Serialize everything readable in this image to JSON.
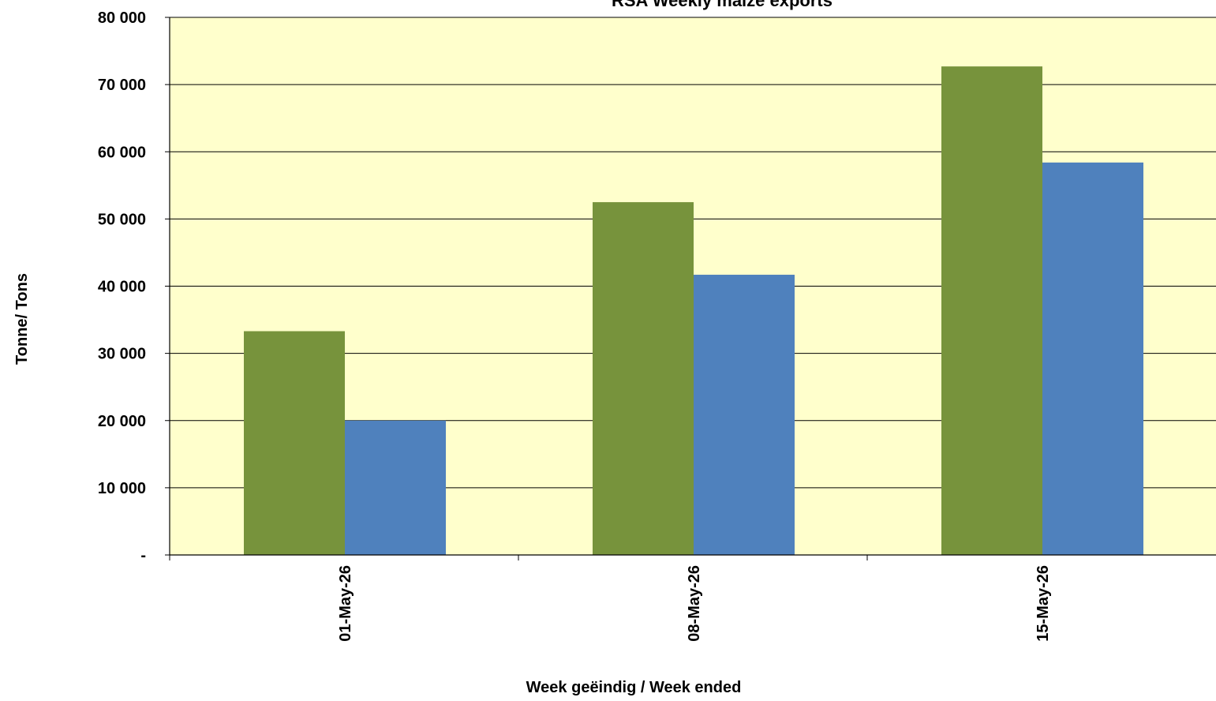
{
  "chart_data": {
    "type": "bar",
    "title": "RSA Weekly maize exports",
    "xlabel": "Week geëindig / Week ended",
    "ylabel": "Tonne/ Tons",
    "categories": [
      "01-May-26",
      "08-May-26",
      "15-May-26"
    ],
    "series": [
      {
        "values": [
          33300,
          52500,
          72700
        ],
        "color": "#77933c"
      },
      {
        "values": [
          20000,
          41700,
          58400
        ],
        "color": "#4f81bd"
      }
    ],
    "ylim": [
      0,
      80000
    ],
    "yticks": [
      0,
      10000,
      20000,
      30000,
      40000,
      50000,
      60000,
      70000,
      80000
    ],
    "ytick_labels": [
      "-",
      "10 000",
      "20 000",
      "30 000",
      "40 000",
      "50 000",
      "60 000",
      "70 000",
      "80 000"
    ],
    "grid": true,
    "plot_background": "#ffffcc"
  }
}
